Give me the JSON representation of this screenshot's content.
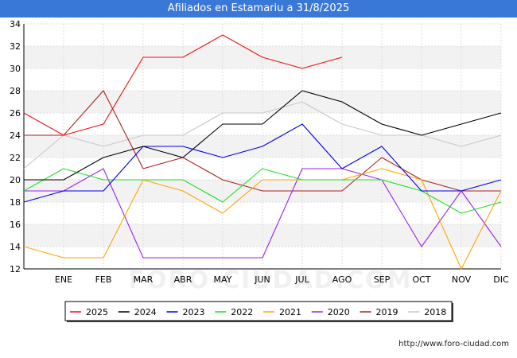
{
  "title": "Afiliados en Estamariu a 31/8/2025",
  "watermark": "FORO-CIUDAD.COM",
  "footer": "http://www.foro-ciudad.com",
  "chart_data": {
    "type": "line",
    "title": "Afiliados en Estamariu a 31/8/2025",
    "categories": [
      "",
      "ENE",
      "FEB",
      "MAR",
      "ABR",
      "MAY",
      "JUN",
      "JUL",
      "AGO",
      "SEP",
      "OCT",
      "NOV",
      "DIC"
    ],
    "ylim": [
      12,
      34
    ],
    "yticks": [
      12,
      14,
      16,
      18,
      20,
      22,
      24,
      26,
      28,
      30,
      32,
      34
    ],
    "grid": true,
    "legend_position": "bottom",
    "series": [
      {
        "name": "2025",
        "color": "#ee1111",
        "values": [
          26,
          24,
          25,
          31,
          31,
          33,
          31,
          30,
          31,
          null,
          null,
          null,
          null
        ]
      },
      {
        "name": "2024",
        "color": "#000000",
        "values": [
          20,
          20,
          22,
          23,
          22,
          25,
          25,
          28,
          27,
          25,
          24,
          25,
          26
        ]
      },
      {
        "name": "2023",
        "color": "#0000ee",
        "values": [
          18,
          19,
          19,
          23,
          23,
          22,
          23,
          25,
          21,
          23,
          19,
          19,
          20
        ]
      },
      {
        "name": "2022",
        "color": "#22dd22",
        "values": [
          19,
          21,
          20,
          20,
          20,
          18,
          21,
          20,
          20,
          20,
          19,
          17,
          18
        ]
      },
      {
        "name": "2021",
        "color": "#ffa500",
        "values": [
          14,
          13,
          13,
          20,
          19,
          17,
          20,
          20,
          20,
          21,
          20,
          12,
          19
        ]
      },
      {
        "name": "2020",
        "color": "#9922ee",
        "values": [
          19,
          19,
          21,
          13,
          13,
          13,
          13,
          21,
          21,
          20,
          14,
          19,
          14
        ]
      },
      {
        "name": "2019",
        "color": "#aa2222",
        "values": [
          24,
          24,
          28,
          21,
          22,
          20,
          19,
          19,
          19,
          22,
          20,
          19,
          19
        ]
      },
      {
        "name": "2018",
        "color": "#c8c8c8",
        "values": [
          21,
          24,
          23,
          24,
          24,
          26,
          26,
          27,
          25,
          24,
          24,
          23,
          24
        ]
      }
    ]
  }
}
